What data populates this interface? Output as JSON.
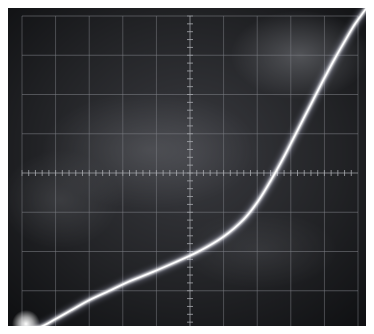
{
  "chart_data": {
    "type": "line",
    "title": "",
    "xlabel": "",
    "ylabel": "",
    "grid": true,
    "grid_divisions": {
      "x": 10,
      "y": 8
    },
    "xlim": [
      0,
      10
    ],
    "ylim": [
      0,
      8
    ],
    "series": [
      {
        "x": [
          0.0,
          0.55,
          1.0,
          1.5,
          2.0,
          2.6,
          3.2,
          3.9,
          4.6,
          5.3,
          6.0,
          6.6,
          7.0,
          7.4,
          7.8,
          8.1,
          8.4,
          8.7,
          9.0,
          9.3,
          9.6,
          9.9,
          10.25
        ],
        "y": [
          0.0,
          0.08,
          0.28,
          0.52,
          0.76,
          1.0,
          1.24,
          1.48,
          1.74,
          2.02,
          2.38,
          2.82,
          3.25,
          3.8,
          4.42,
          4.92,
          5.42,
          5.92,
          6.42,
          6.9,
          7.35,
          7.78,
          8.2
        ]
      }
    ]
  },
  "colors": {
    "screen": "#16171a",
    "screen_glow": "#5a5c62",
    "border": "#ffffff",
    "graticule": "#7d7f85",
    "graticule_ticks": "#a9abb0",
    "trace": "#ffffff",
    "trace_glow": "#d8dcff"
  }
}
